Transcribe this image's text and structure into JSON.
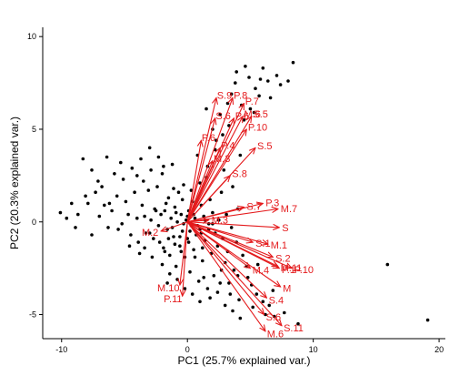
{
  "chart_data": {
    "type": "biplot",
    "xlabel": "PC1 (25.7% explained var.)",
    "ylabel": "PC2 (20.3% explained var.)",
    "xlim": [
      -11.5,
      20.5
    ],
    "ylim": [
      -6.3,
      10.5
    ],
    "xticks": [
      -10,
      0,
      10,
      20
    ],
    "yticks": [
      -5,
      0,
      5,
      10
    ],
    "grid": false,
    "arrow_color": "#e41a1c",
    "point_color": "#000000",
    "loadings": [
      {
        "label": "S.9",
        "x": 2.3,
        "y": 6.7
      },
      {
        "label": "P.8",
        "x": 3.6,
        "y": 6.7
      },
      {
        "label": "P.7",
        "x": 4.5,
        "y": 6.4
      },
      {
        "label": "M.6",
        "x": 4.4,
        "y": 5.7
      },
      {
        "label": "S.5",
        "x": 5.1,
        "y": 5.7
      },
      {
        "label": "S.6",
        "x": 2.2,
        "y": 5.6
      },
      {
        "label": "P.6",
        "x": 3.7,
        "y": 5.6
      },
      {
        "label": "P.10",
        "x": 4.7,
        "y": 5.0
      },
      {
        "label": "P.6",
        "x": 1.1,
        "y": 4.4
      },
      {
        "label": "P.4",
        "x": 2.6,
        "y": 4.0
      },
      {
        "label": "S.5",
        "x": 5.4,
        "y": 4.0
      },
      {
        "label": "M.3",
        "x": 2.0,
        "y": 3.3
      },
      {
        "label": "S.8",
        "x": 3.4,
        "y": 2.5
      },
      {
        "label": "S.7",
        "x": 4.5,
        "y": 0.8
      },
      {
        "label": "P.3",
        "x": 6.0,
        "y": 1.0
      },
      {
        "label": "M.7",
        "x": 7.2,
        "y": 0.7
      },
      {
        "label": "M.2",
        "x": -2.1,
        "y": -0.5
      },
      {
        "label": "M.3",
        "x": 1.7,
        "y": 0.1
      },
      {
        "label": "S",
        "x": 7.3,
        "y": -0.3
      },
      {
        "label": "S.1",
        "x": 5.2,
        "y": -1.1
      },
      {
        "label": "M.1",
        "x": 6.4,
        "y": -1.2
      },
      {
        "label": "S.2",
        "x": 6.8,
        "y": -1.9
      },
      {
        "label": "M.4",
        "x": 5.0,
        "y": -2.5
      },
      {
        "label": "P.1",
        "x": 7.3,
        "y": -2.5
      },
      {
        "label": "M.11",
        "x": 7.2,
        "y": -2.4
      },
      {
        "label": "P.10",
        "x": 8.3,
        "y": -2.5
      },
      {
        "label": "M",
        "x": 7.4,
        "y": -3.5
      },
      {
        "label": "S.4",
        "x": 6.3,
        "y": -4.1
      },
      {
        "label": "S.6",
        "x": 6.1,
        "y": -5.0
      },
      {
        "label": "S.11",
        "x": 7.5,
        "y": -5.6
      },
      {
        "label": "M.6",
        "x": 6.2,
        "y": -5.9
      },
      {
        "label": "M.10",
        "x": -0.6,
        "y": -3.4
      },
      {
        "label": "P.11",
        "x": -0.4,
        "y": -4.0
      }
    ],
    "points": [
      [
        -10.1,
        0.5
      ],
      [
        -9.6,
        0.2
      ],
      [
        -8.3,
        3.4
      ],
      [
        -8.1,
        1.4
      ],
      [
        -7.9,
        1.0
      ],
      [
        -7.6,
        2.8
      ],
      [
        -7.3,
        1.6
      ],
      [
        -7.1,
        2.2
      ],
      [
        -6.8,
        1.9
      ],
      [
        -6.4,
        3.5
      ],
      [
        -6.2,
        1.0
      ],
      [
        -6.0,
        0.6
      ],
      [
        -5.8,
        2.6
      ],
      [
        -5.6,
        1.4
      ],
      [
        -5.5,
        -0.4
      ],
      [
        -5.3,
        3.2
      ],
      [
        -5.1,
        2.3
      ],
      [
        -4.9,
        1.1
      ],
      [
        -4.7,
        0.4
      ],
      [
        -4.5,
        -0.7
      ],
      [
        -4.4,
        2.9
      ],
      [
        -4.2,
        1.6
      ],
      [
        -4.0,
        0.2
      ],
      [
        -3.9,
        -1.1
      ],
      [
        -3.7,
        3.4
      ],
      [
        -3.6,
        0.9
      ],
      [
        -3.4,
        0.3
      ],
      [
        -3.3,
        -0.6
      ],
      [
        -3.1,
        1.7
      ],
      [
        -3.0,
        4.0
      ],
      [
        -2.9,
        0.1
      ],
      [
        -2.7,
        -0.9
      ],
      [
        -2.6,
        0.7
      ],
      [
        -2.4,
        1.9
      ],
      [
        -2.3,
        -0.2
      ],
      [
        -2.1,
        0.4
      ],
      [
        -2.0,
        2.6
      ],
      [
        -1.9,
        -1.4
      ],
      [
        -1.8,
        0.6
      ],
      [
        -1.6,
        -0.4
      ],
      [
        -1.5,
        1.3
      ],
      [
        -1.4,
        -1.8
      ],
      [
        -1.3,
        0.2
      ],
      [
        -1.2,
        3.1
      ],
      [
        -1.1,
        -0.8
      ],
      [
        -1.0,
        0.8
      ],
      [
        -0.9,
        -2.4
      ],
      [
        -0.8,
        0.0
      ],
      [
        -0.7,
        1.6
      ],
      [
        -0.6,
        -1.3
      ],
      [
        -0.5,
        0.4
      ],
      [
        -0.4,
        -0.5
      ],
      [
        -0.3,
        2.0
      ],
      [
        -0.2,
        -1.9
      ],
      [
        -0.1,
        0.1
      ],
      [
        0.0,
        -0.9
      ],
      [
        0.1,
        0.6
      ],
      [
        0.2,
        -2.7
      ],
      [
        0.3,
        -0.2
      ],
      [
        0.4,
        1.1
      ],
      [
        0.5,
        -1.5
      ],
      [
        0.6,
        0.2
      ],
      [
        0.7,
        -0.7
      ],
      [
        0.8,
        3.6
      ],
      [
        0.9,
        -3.2
      ],
      [
        1.0,
        -0.4
      ],
      [
        1.1,
        0.9
      ],
      [
        1.2,
        -2.1
      ],
      [
        1.3,
        0.3
      ],
      [
        1.4,
        -1.0
      ],
      [
        1.5,
        2.4
      ],
      [
        1.6,
        -3.6
      ],
      [
        1.7,
        -0.1
      ],
      [
        1.8,
        1.2
      ],
      [
        1.9,
        -1.7
      ],
      [
        2.0,
        0.5
      ],
      [
        2.1,
        -2.9
      ],
      [
        2.2,
        -0.6
      ],
      [
        2.3,
        4.4
      ],
      [
        2.4,
        -1.3
      ],
      [
        2.5,
        0.1
      ],
      [
        2.6,
        -3.3
      ],
      [
        2.7,
        1.6
      ],
      [
        2.8,
        -0.9
      ],
      [
        2.9,
        2.8
      ],
      [
        3.0,
        -2.2
      ],
      [
        3.1,
        0.4
      ],
      [
        3.2,
        -1.6
      ],
      [
        3.3,
        5.2
      ],
      [
        3.4,
        -3.9
      ],
      [
        3.5,
        -0.3
      ],
      [
        3.6,
        1.9
      ],
      [
        3.7,
        -2.6
      ],
      [
        3.8,
        7.5
      ],
      [
        3.9,
        -1.1
      ],
      [
        4.0,
        0.7
      ],
      [
        4.1,
        -4.2
      ],
      [
        4.2,
        3.6
      ],
      [
        4.4,
        -1.8
      ],
      [
        4.6,
        8.4
      ],
      [
        4.8,
        -3.0
      ],
      [
        5.0,
        6.1
      ],
      [
        5.2,
        -4.6
      ],
      [
        5.4,
        7.2
      ],
      [
        5.6,
        -2.3
      ],
      [
        5.8,
        7.7
      ],
      [
        6.0,
        8.3
      ],
      [
        6.2,
        -5.0
      ],
      [
        6.4,
        7.6
      ],
      [
        6.6,
        6.7
      ],
      [
        6.8,
        -3.7
      ],
      [
        7.1,
        7.9
      ],
      [
        7.4,
        7.4
      ],
      [
        7.7,
        -4.9
      ],
      [
        8.0,
        7.6
      ],
      [
        8.4,
        8.6
      ],
      [
        8.8,
        -5.5
      ],
      [
        15.9,
        -2.3
      ],
      [
        19.1,
        -5.3
      ],
      [
        -1.2,
        -0.3
      ],
      [
        -0.9,
        0.5
      ],
      [
        -0.6,
        -0.8
      ],
      [
        -0.3,
        -0.1
      ],
      [
        0.0,
        0.3
      ],
      [
        0.2,
        -0.5
      ],
      [
        0.5,
        0.4
      ],
      [
        0.8,
        -0.2
      ],
      [
        1.1,
        -0.6
      ],
      [
        1.4,
        0.1
      ],
      [
        1.7,
        -0.4
      ],
      [
        2.0,
        -0.1
      ],
      [
        -1.5,
        -0.9
      ],
      [
        -1.0,
        -1.2
      ],
      [
        -0.5,
        -1.6
      ],
      [
        0.1,
        -1.1
      ],
      [
        0.6,
        -1.9
      ],
      [
        1.2,
        -1.4
      ],
      [
        -1.8,
        -1.6
      ],
      [
        -2.2,
        -1.1
      ],
      [
        -2.5,
        0.6
      ],
      [
        -1.7,
        1.0
      ],
      [
        -1.1,
        1.8
      ],
      [
        -0.4,
        1.2
      ],
      [
        0.3,
        1.7
      ],
      [
        1.0,
        2.1
      ],
      [
        1.6,
        3.0
      ],
      [
        2.2,
        3.9
      ],
      [
        2.8,
        4.7
      ],
      [
        3.2,
        6.4
      ],
      [
        2.6,
        5.8
      ],
      [
        2.0,
        5.0
      ],
      [
        1.5,
        6.1
      ],
      [
        3.5,
        6.9
      ],
      [
        4.3,
        6.3
      ],
      [
        4.9,
        7.8
      ],
      [
        3.9,
        8.1
      ],
      [
        4.5,
        5.5
      ],
      [
        5.3,
        5.9
      ],
      [
        5.7,
        6.8
      ],
      [
        -1.4,
        -2.8
      ],
      [
        -0.8,
        -3.1
      ],
      [
        -0.2,
        -3.6
      ],
      [
        0.4,
        -3.9
      ],
      [
        1.0,
        -4.3
      ],
      [
        1.8,
        -4.1
      ],
      [
        2.4,
        -3.8
      ],
      [
        3.0,
        -4.5
      ],
      [
        3.6,
        -4.8
      ],
      [
        4.2,
        -5.2
      ],
      [
        -2.8,
        -1.9
      ],
      [
        -3.4,
        -1.4
      ],
      [
        -2.0,
        -2.3
      ],
      [
        -1.6,
        -3.3
      ],
      [
        1.3,
        -3.0
      ],
      [
        2.7,
        -2.6
      ],
      [
        3.3,
        -3.3
      ],
      [
        4.0,
        -2.9
      ],
      [
        4.7,
        -2.4
      ],
      [
        5.1,
        -3.4
      ],
      [
        5.5,
        -3.9
      ],
      [
        6.0,
        -4.3
      ],
      [
        6.5,
        -4.5
      ],
      [
        6.9,
        -5.1
      ],
      [
        -4.0,
        2.5
      ],
      [
        -3.5,
        2.2
      ],
      [
        -2.9,
        2.8
      ],
      [
        -2.3,
        3.5
      ],
      [
        -1.9,
        3.0
      ],
      [
        -6.6,
        0.9
      ],
      [
        -7.0,
        0.3
      ],
      [
        -8.7,
        0.4
      ],
      [
        -9.2,
        1.0
      ],
      [
        -8.9,
        -0.3
      ],
      [
        -5.2,
        -0.1
      ],
      [
        -4.6,
        -1.3
      ],
      [
        -3.8,
        -1.7
      ],
      [
        -3.0,
        -0.6
      ],
      [
        -6.3,
        -0.3
      ],
      [
        -7.6,
        -0.7
      ]
    ]
  }
}
